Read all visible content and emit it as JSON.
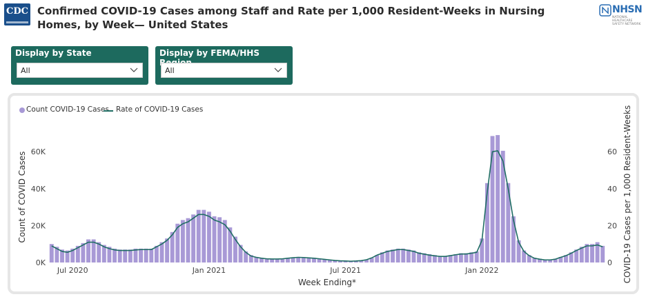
{
  "header": {
    "title": "Confirmed COVID-19 Cases among Staff and Rate per 1,000 Resident-Weeks in Nursing Homes, by Week— United States",
    "cdc_logo_text": "CDC",
    "nhsn_logo_text": "NHSN",
    "nhsn_logo_subtext": "NATIONAL HEALTHCARE SAFETY NETWORK"
  },
  "filters": {
    "state": {
      "label": "Display by State",
      "value": "All"
    },
    "region": {
      "label": "Display by FEMA/HHS Region",
      "value": "All"
    }
  },
  "colors": {
    "bar": "#a899d6",
    "line": "#1f6d63",
    "filter_bg": "#1d6a5e"
  },
  "chart_data": {
    "type": "bar",
    "title": "",
    "xlabel": "Week Ending*",
    "ylabel": "Count of COVID Cases",
    "y2label": "COVID-19 Cases per 1,000 Resident-Weeks",
    "ylim": [
      0,
      75000
    ],
    "y2lim": [
      0,
      75
    ],
    "yticks": [
      0,
      20000,
      40000,
      60000
    ],
    "ytick_labels": [
      "0K",
      "20K",
      "40K",
      "60K"
    ],
    "y2ticks": [
      0,
      20,
      40,
      60
    ],
    "y2tick_labels": [
      "0",
      "20",
      "40",
      "60"
    ],
    "x_tick_labels": [
      {
        "label": "Jul 2020",
        "week_index": 4
      },
      {
        "label": "Jan 2021",
        "week_index": 30
      },
      {
        "label": "Jul 2021",
        "week_index": 56
      },
      {
        "label": "Jan 2022",
        "week_index": 82
      }
    ],
    "legend_position": "top-left",
    "series": [
      {
        "name": "Count COVID-19 Cases",
        "kind": "bar",
        "values": [
          10000,
          8500,
          7000,
          6500,
          7500,
          9000,
          10500,
          12500,
          12500,
          11000,
          9500,
          8500,
          7500,
          7000,
          7000,
          7000,
          7500,
          7500,
          7500,
          7500,
          9000,
          11000,
          13000,
          16500,
          21000,
          23000,
          24000,
          26000,
          28500,
          28500,
          27500,
          25000,
          24500,
          23000,
          19000,
          14000,
          9500,
          6000,
          4000,
          3000,
          2500,
          2200,
          2000,
          2000,
          2200,
          2500,
          2800,
          3000,
          2900,
          2700,
          2500,
          2200,
          1800,
          1500,
          1200,
          900,
          800,
          700,
          800,
          1000,
          1500,
          2500,
          4000,
          5500,
          6500,
          7000,
          7500,
          7500,
          7000,
          6500,
          5500,
          5000,
          4500,
          4000,
          3500,
          3500,
          4000,
          4500,
          5000,
          5000,
          5500,
          6000,
          13000,
          43000,
          68500,
          69000,
          60500,
          43000,
          25000,
          12000,
          6500,
          4000,
          2500,
          2000,
          1500,
          1500,
          2000,
          3000,
          4000,
          5500,
          7000,
          8500,
          10000,
          10000,
          11000,
          9000
        ]
      },
      {
        "name": "Rate of COVID-19 Cases",
        "kind": "line",
        "values": [
          9,
          7.5,
          6,
          5.5,
          6.5,
          8,
          9.5,
          11,
          11,
          10,
          8.5,
          7.5,
          6.8,
          6.5,
          6.5,
          6.5,
          6.8,
          7,
          7,
          7,
          8.5,
          10,
          12,
          15,
          19,
          21,
          22,
          24,
          26,
          26,
          25,
          23,
          22,
          20.5,
          17,
          12.5,
          8.5,
          5.5,
          3.5,
          2.8,
          2.3,
          2,
          1.9,
          1.9,
          2,
          2.3,
          2.6,
          2.8,
          2.7,
          2.5,
          2.3,
          2,
          1.7,
          1.4,
          1.1,
          0.9,
          0.8,
          0.7,
          0.8,
          1,
          1.5,
          2.5,
          4,
          5,
          6,
          6.5,
          7,
          7,
          6.5,
          6,
          5,
          4.5,
          4,
          3.6,
          3.3,
          3.3,
          3.7,
          4.2,
          4.6,
          4.6,
          5,
          5.5,
          12,
          38,
          60,
          60.5,
          55,
          40,
          23,
          11,
          6,
          3.7,
          2.3,
          1.8,
          1.4,
          1.4,
          1.8,
          2.8,
          3.7,
          5,
          6.5,
          7.8,
          9,
          9,
          9.5,
          8.5
        ]
      }
    ]
  }
}
